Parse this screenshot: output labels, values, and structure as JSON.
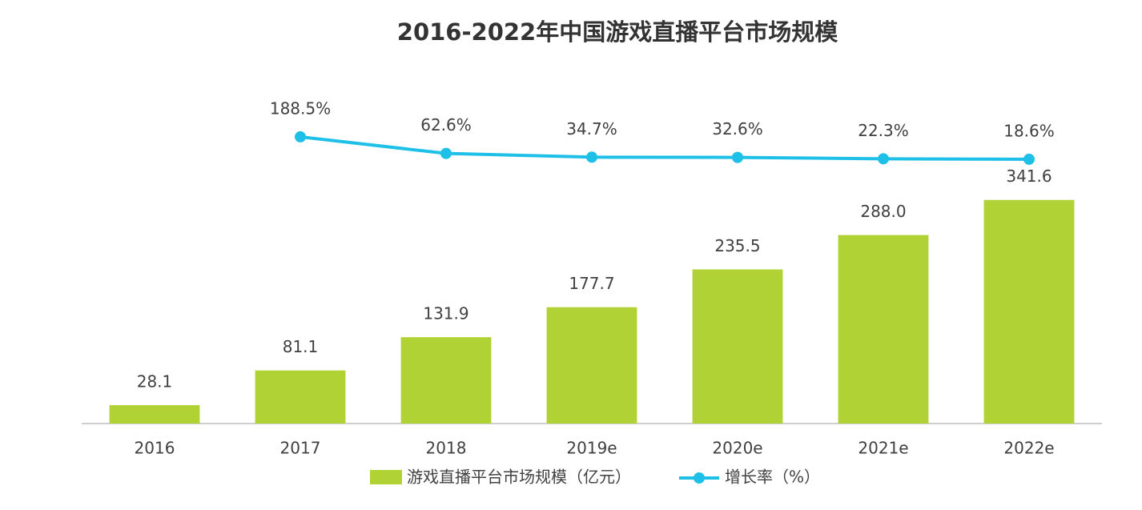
{
  "chart_data": {
    "type": "bar-line",
    "title": "2016-2022年中国游戏直播平台市场规模",
    "categories": [
      "2016",
      "2017",
      "2018",
      "2019e",
      "2020e",
      "2021e",
      "2022e"
    ],
    "series": [
      {
        "name": "游戏直播平台市场规模（亿元）",
        "type": "bar",
        "color": "#b0d235",
        "values": [
          28.1,
          81.1,
          131.9,
          177.7,
          235.5,
          288.0,
          341.6
        ],
        "value_labels": [
          "28.1",
          "81.1",
          "131.9",
          "177.7",
          "235.5",
          "288.0",
          "341.6"
        ]
      },
      {
        "name": "增长率（%）",
        "type": "line",
        "axis": "y2",
        "color": "#1fc0e8",
        "values": [
          null,
          188.5,
          62.6,
          34.7,
          32.6,
          22.3,
          18.6
        ],
        "value_labels": [
          null,
          "188.5%",
          "62.6%",
          "34.7%",
          "32.6%",
          "22.3%",
          "18.6%"
        ]
      }
    ],
    "ylim": [
      0,
      400
    ],
    "y2lim": [
      0,
      200
    ],
    "grid": false
  }
}
